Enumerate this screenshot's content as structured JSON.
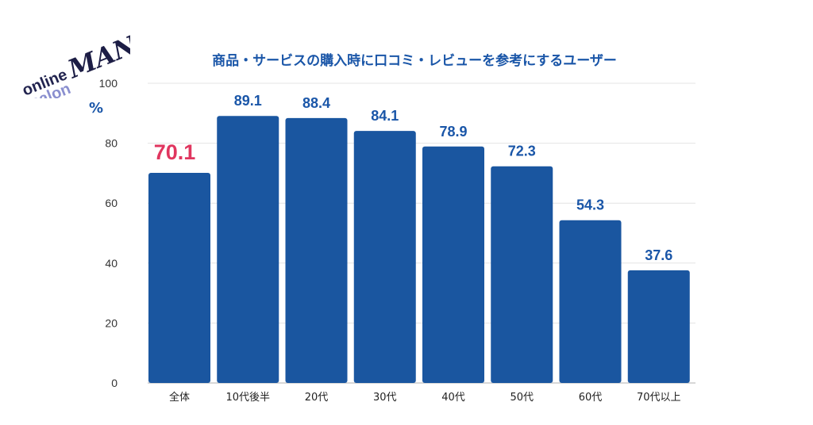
{
  "logo": {
    "line1": "online",
    "line2": "salon",
    "brand": "MANIA"
  },
  "chart_data": {
    "type": "bar",
    "title": "商品・サービスの購入時に口コミ・レビューを参考にするユーザー",
    "ylabel": "%",
    "xlabel": "",
    "ylim": [
      0,
      100
    ],
    "yticks": [
      0,
      20,
      40,
      60,
      80,
      100
    ],
    "grid": true,
    "categories": [
      "全体",
      "10代後半",
      "20代",
      "30代",
      "40代",
      "50代",
      "60代",
      "70代以上"
    ],
    "values": [
      70.1,
      89.1,
      88.4,
      84.1,
      78.9,
      72.3,
      54.3,
      37.6
    ],
    "value_labels": [
      "70.1",
      "89.1",
      "88.4",
      "84.1",
      "78.9",
      "72.3",
      "54.3",
      "37.6"
    ],
    "bar_color": "#1a56a0",
    "label_color": "#1a56a8",
    "highlight_label_color": "#e0365f"
  }
}
